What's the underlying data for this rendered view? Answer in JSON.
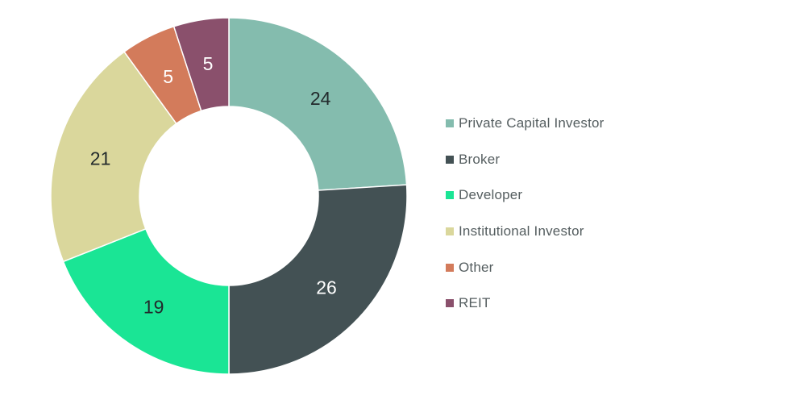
{
  "chart_data": {
    "type": "pie",
    "variant": "donut",
    "title": "",
    "legend_position": "right",
    "categories": [
      "Private Capital Investor",
      "Broker",
      "Developer",
      "Institutional Investor",
      "Other",
      "REIT"
    ],
    "values": [
      24,
      26,
      19,
      21,
      5,
      5
    ],
    "colors": [
      "#84bcae",
      "#435154",
      "#1ae595",
      "#dad79c",
      "#d37b5b",
      "#8a506c"
    ],
    "label_colors": [
      "#222a2c",
      "#ffffff",
      "#222a2c",
      "#222a2c",
      "#ffffff",
      "#ffffff"
    ],
    "data_labels": [
      "24",
      "26",
      "19",
      "21",
      "5",
      "5"
    ]
  }
}
